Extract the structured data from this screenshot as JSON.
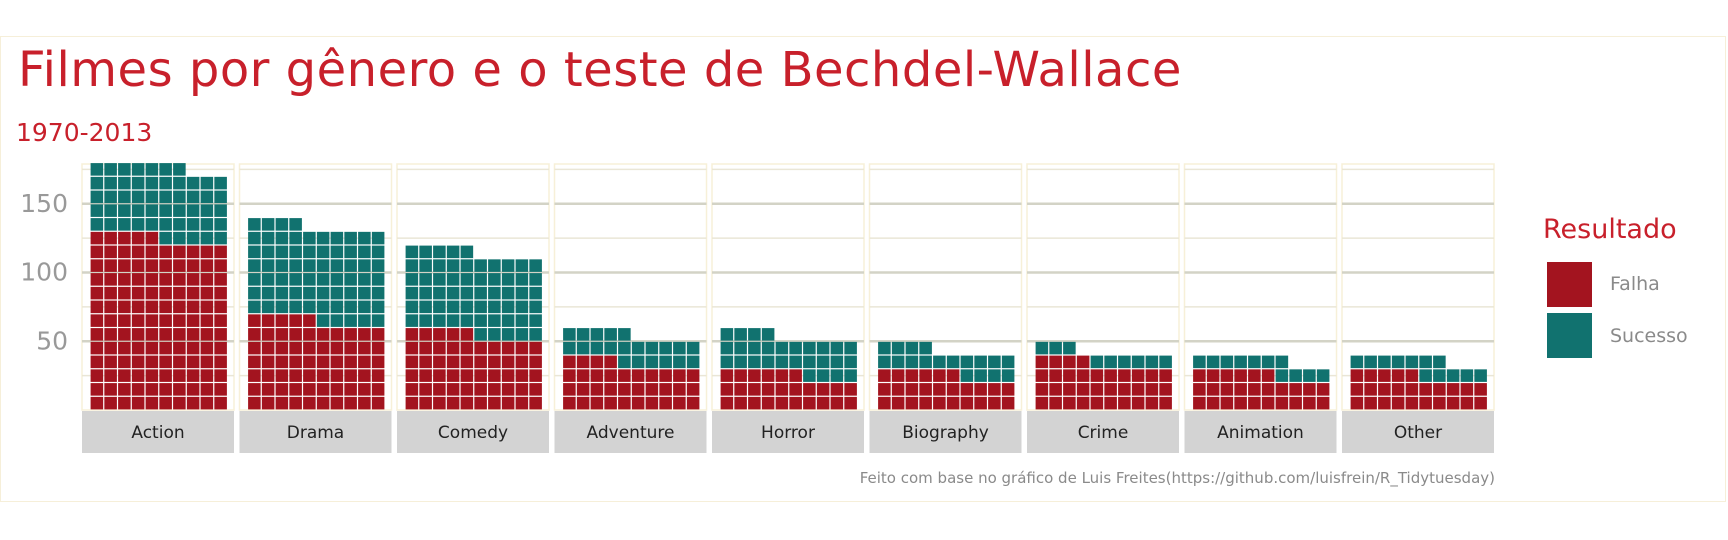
{
  "title": "Filmes por gênero e o teste de Bechdel-Wallace",
  "subtitle": "1970-2013",
  "caption": "Feito com base no gráfico de Luis Freites(https://github.com/luisfrein/R_Tidytuesday)",
  "legend": {
    "title": "Resultado",
    "items": [
      {
        "label": "Falha",
        "color": "#a3141f"
      },
      {
        "label": "Sucesso",
        "color": "#11726f"
      }
    ]
  },
  "chart_data": {
    "type": "waffle",
    "units_per_tile": 1,
    "tiles_per_row": 10,
    "yticks": [
      50,
      100,
      150
    ],
    "ylim": [
      0,
      180
    ],
    "grid": true,
    "legend_position": "right",
    "categories": [
      "Action",
      "Drama",
      "Comedy",
      "Adventure",
      "Horror",
      "Biography",
      "Crime",
      "Animation",
      "Other"
    ],
    "series": [
      {
        "name": "Falha",
        "values": [
          125,
          65,
          55,
          34,
          26,
          26,
          34,
          26,
          25
        ]
      },
      {
        "name": "Sucesso",
        "values": [
          52,
          69,
          60,
          21,
          28,
          18,
          9,
          11,
          12
        ]
      }
    ]
  }
}
